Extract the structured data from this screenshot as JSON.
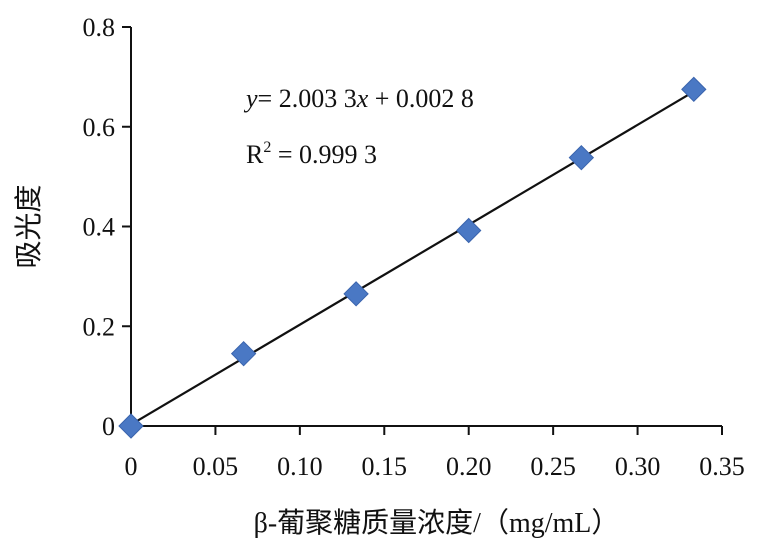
{
  "chart_data": {
    "type": "scatter",
    "xlabel": "β-葡聚糖质量浓度/（mg/mL）",
    "ylabel": "吸光度",
    "xlim": [
      0,
      0.35
    ],
    "ylim": [
      0,
      0.8
    ],
    "x_ticks": [
      "0",
      "0.05",
      "0.10",
      "0.15",
      "0.20",
      "0.25",
      "0.30",
      "0.35"
    ],
    "y_ticks": [
      "0",
      "0.2",
      "0.4",
      "0.6",
      "0.8"
    ],
    "grid": false,
    "series": [
      {
        "marker": "diamond",
        "color": "#4a78c4",
        "points": [
          {
            "x": 0,
            "y": 0.0
          },
          {
            "x": 0.0667,
            "y": 0.145
          },
          {
            "x": 0.1333,
            "y": 0.265
          },
          {
            "x": 0.2,
            "y": 0.392
          },
          {
            "x": 0.2667,
            "y": 0.538
          },
          {
            "x": 0.3333,
            "y": 0.675
          }
        ]
      }
    ],
    "trendline": {
      "slope": 2.0033,
      "intercept": 0.0028,
      "x_range": [
        0,
        0.3333
      ],
      "color": "#111111"
    },
    "annotations": {
      "equation_y": "y",
      "equation_rest": "= 2.003 3",
      "equation_x": "x",
      "equation_tail": " + 0.002 8",
      "r2_r": "R",
      "r2_sup": "2",
      "r2_value": " = 0.999 3"
    }
  }
}
